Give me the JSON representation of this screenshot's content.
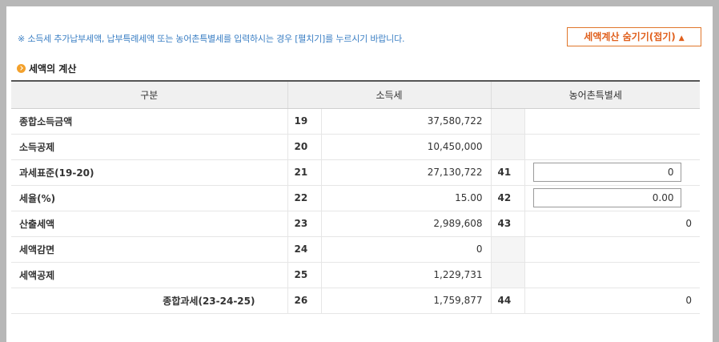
{
  "notice": "※ 소득세 추가납부세액, 납부특례세액 또는 농어촌특별세를 입력하시는 경우 [펼치기]를 누르시기 바랍니다.",
  "toggle_button": {
    "label": "세액계산 숨기기(접기)",
    "arrow": "▲"
  },
  "section_title": "세액의 계산",
  "table": {
    "headers": {
      "category": "구분",
      "income_tax": "소득세",
      "rural_tax": "농어촌특별세"
    },
    "rows": [
      {
        "label": "종합소득금액",
        "code": "19",
        "value": "37,580,722",
        "rural_code": "",
        "rural_value": ""
      },
      {
        "label": "소득공제",
        "code": "20",
        "value": "10,450,000",
        "rural_code": "",
        "rural_value": ""
      },
      {
        "label": "과세표준(19-20)",
        "code": "21",
        "value": "27,130,722",
        "rural_code": "41",
        "rural_value": "0"
      },
      {
        "label": "세율(%)",
        "code": "22",
        "value": "15.00",
        "rural_code": "42",
        "rural_value": "0.00"
      },
      {
        "label": "산출세액",
        "code": "23",
        "value": "2,989,608",
        "rural_code": "43",
        "rural_value": "0"
      },
      {
        "label": "세액감면",
        "code": "24",
        "value": "0",
        "rural_code": "",
        "rural_value": ""
      },
      {
        "label": "세액공제",
        "code": "25",
        "value": "1,229,731",
        "rural_code": "",
        "rural_value": ""
      },
      {
        "label": "종합과세(23-24-25)",
        "code": "26",
        "value": "1,759,877",
        "rural_code": "44",
        "rural_value": "0"
      }
    ]
  }
}
